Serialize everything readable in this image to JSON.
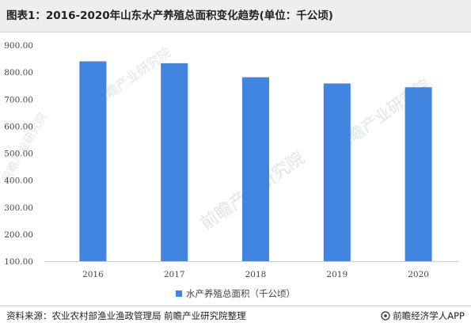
{
  "title": "图表1：2016-2020年山东水产养殖总面积变化趋势(单位：千公顷)",
  "source": "资料来源：农业农村部渔业渔政管理局 前瞻产业研究院整理",
  "brand": "前瞻经济学人APP",
  "watermark": "前瞻产业研究院",
  "colors": {
    "bar": "#4285e0",
    "axis": "#cccccc",
    "header_bg": "#eeeeee"
  },
  "chart_data": {
    "type": "bar",
    "categories": [
      "2016",
      "2017",
      "2018",
      "2019",
      "2020"
    ],
    "series": [
      {
        "name": "水产养殖总面积（千公顷）",
        "values": [
          840,
          833,
          781,
          758,
          744
        ]
      }
    ],
    "title": "图表1：2016-2020年山东水产养殖总面积变化趋势(单位：千公顷)",
    "xlabel": "",
    "ylabel": "",
    "ylim": [
      100,
      900
    ],
    "yticks": [
      "100.00",
      "200.00",
      "300.00",
      "400.00",
      "500.00",
      "600.00",
      "700.00",
      "800.00",
      "900.00"
    ],
    "grid": false,
    "legend": "bottom-center"
  }
}
